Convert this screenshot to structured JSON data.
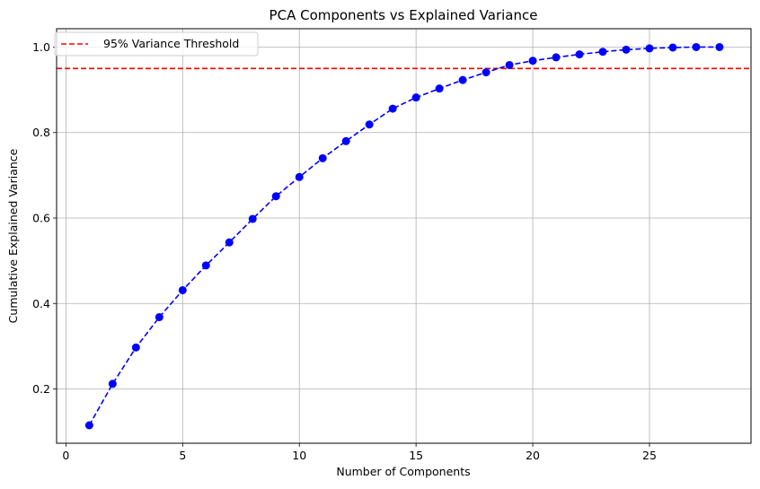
{
  "chart_data": {
    "type": "line",
    "title": "PCA Components vs Explained Variance",
    "xlabel": "Number of Components",
    "ylabel": "Cumulative Explained Variance",
    "xlim": [
      -0.4,
      29.35
    ],
    "ylim": [
      0.073,
      1.043
    ],
    "xticks": [
      0,
      5,
      10,
      15,
      20,
      25
    ],
    "yticks": [
      0.2,
      0.4,
      0.6,
      0.8,
      1.0
    ],
    "xtick_labels": [
      "0",
      "5",
      "10",
      "15",
      "20",
      "25"
    ],
    "ytick_labels": [
      "0.2",
      "0.4",
      "0.6",
      "0.8",
      "1.0"
    ],
    "grid": true,
    "legend_position": "upper-left",
    "series": [
      {
        "type": "line",
        "style": "dashed",
        "marker": "circle",
        "color": "#0000ff",
        "x": [
          1,
          2,
          3,
          4,
          5,
          6,
          7,
          8,
          9,
          10,
          11,
          12,
          13,
          14,
          15,
          16,
          17,
          18,
          19,
          20,
          21,
          22,
          23,
          24,
          25,
          26,
          27,
          28
        ],
        "y": [
          0.115,
          0.212,
          0.297,
          0.368,
          0.431,
          0.489,
          0.543,
          0.598,
          0.651,
          0.696,
          0.74,
          0.78,
          0.819,
          0.856,
          0.882,
          0.903,
          0.923,
          0.941,
          0.958,
          0.968,
          0.976,
          0.983,
          0.989,
          0.994,
          0.997,
          0.999,
          1.0,
          1.0
        ]
      }
    ],
    "reference_lines": [
      {
        "orientation": "horizontal",
        "y": 0.95,
        "color": "#ff0000",
        "style": "dashed",
        "label": "95% Variance Threshold"
      }
    ]
  }
}
